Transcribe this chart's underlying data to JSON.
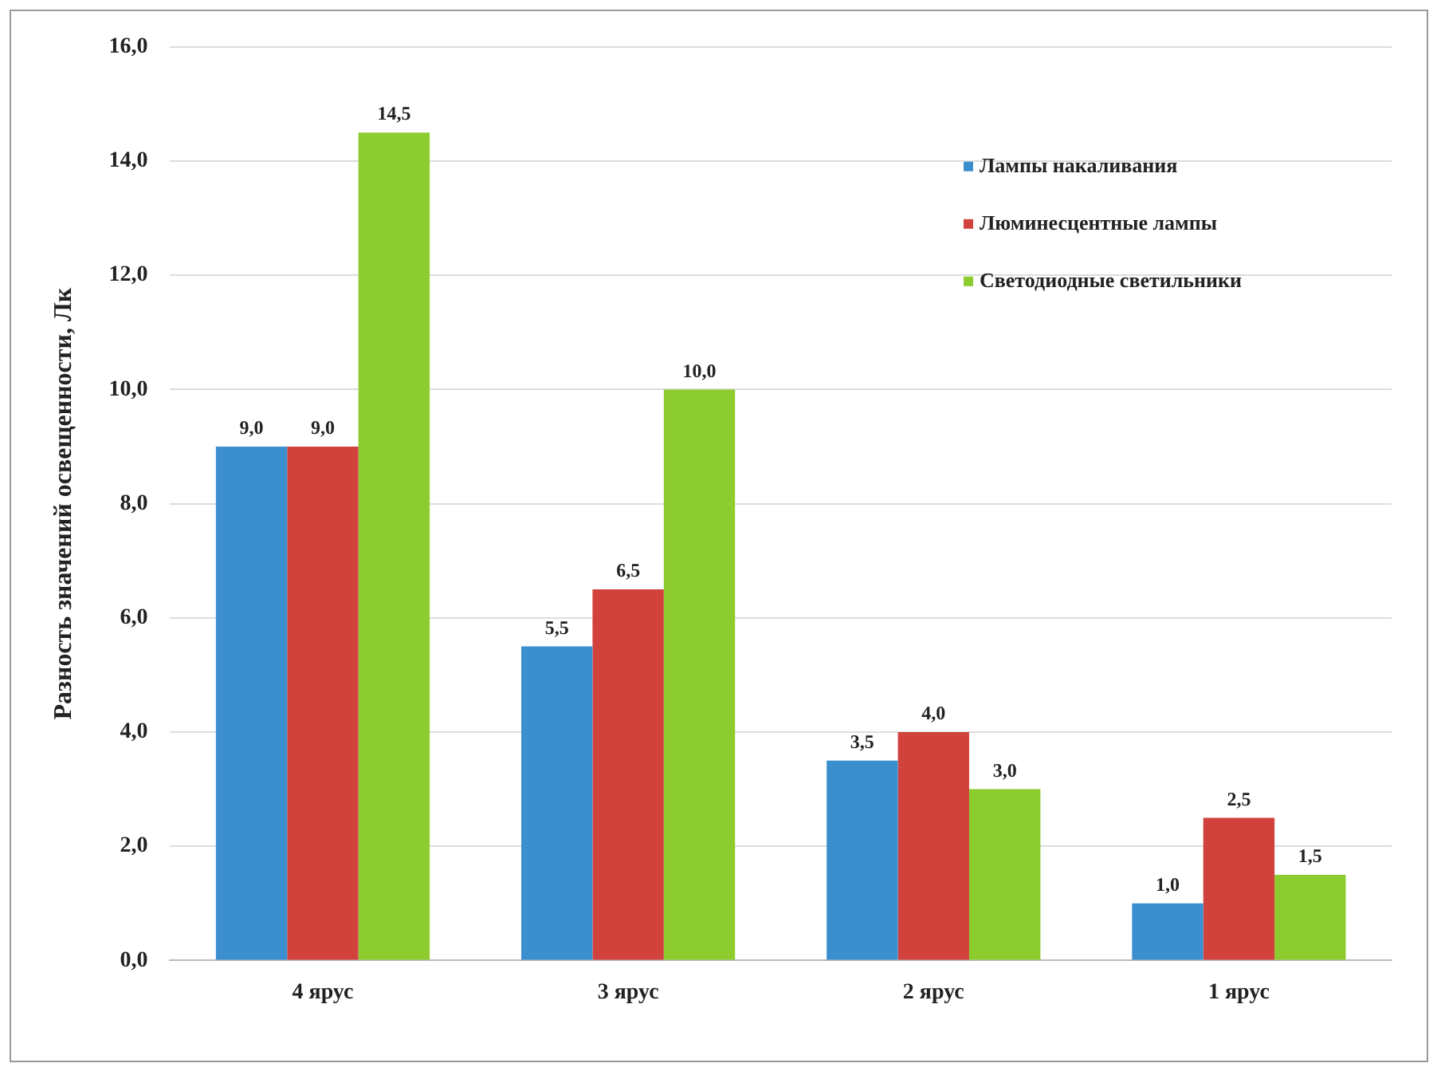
{
  "chart_data": {
    "type": "bar",
    "ylabel": "Разность значений освещенности, Лк",
    "categories": [
      "4 ярус",
      "3 ярус",
      "2 ярус",
      "1 ярус"
    ],
    "series": [
      {
        "name": "Лампы накаливания",
        "color": "#3b8fcf",
        "values": [
          9,
          5.5,
          3.5,
          1
        ],
        "value_labels": [
          "9,0",
          "5,5",
          "3,5",
          "1,0"
        ]
      },
      {
        "name": "Люминесцентные лампы",
        "color": "#d2423c",
        "values": [
          9,
          6.5,
          4,
          2.5
        ],
        "value_labels": [
          "9,0",
          "6,5",
          "4,0",
          "2,5"
        ]
      },
      {
        "name": "Светодиодные светильники",
        "color": "#8dcc2f",
        "values": [
          14.5,
          10,
          3,
          1.5
        ],
        "value_labels": [
          "14,5",
          "10,0",
          "3,0",
          "1,5"
        ]
      }
    ],
    "ylim": [
      0,
      16
    ],
    "yticks": [
      {
        "value": 0,
        "label": "0,0"
      },
      {
        "value": 2,
        "label": "2,0"
      },
      {
        "value": 4,
        "label": "4,0"
      },
      {
        "value": 6,
        "label": "6,0"
      },
      {
        "value": 8,
        "label": "8,0"
      },
      {
        "value": 10,
        "label": "10,0"
      },
      {
        "value": 12,
        "label": "12,0"
      },
      {
        "value": 14,
        "label": "14,0"
      },
      {
        "value": 16,
        "label": "16,0"
      }
    ],
    "grid": "y",
    "legend": "top right"
  }
}
